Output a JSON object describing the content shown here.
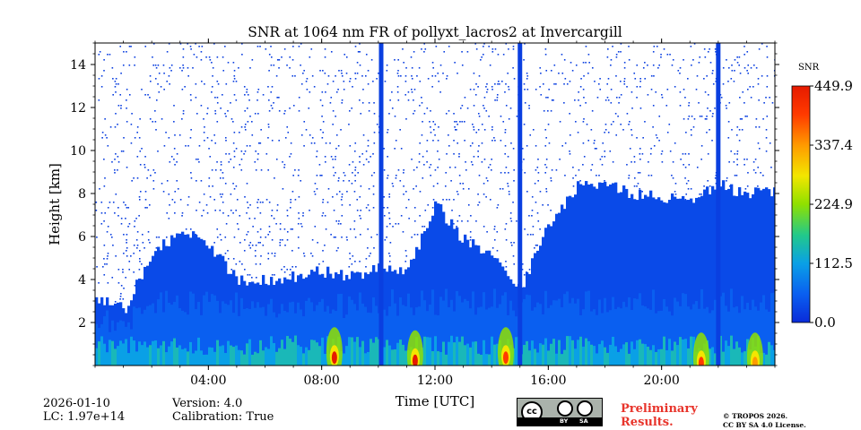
{
  "chart_data": {
    "type": "heatmap",
    "title": "SNR at 1064 nm FR of pollyxt_lacros2 at Invercargill",
    "xlabel": "Time [UTC]",
    "ylabel": "Height [km]",
    "x_range_hours": [
      0,
      24
    ],
    "ylim": [
      0,
      15
    ],
    "xticks": [
      {
        "value": 4,
        "label": "04:00"
      },
      {
        "value": 8,
        "label": "08:00"
      },
      {
        "value": 12,
        "label": "12:00"
      },
      {
        "value": 16,
        "label": "16:00"
      },
      {
        "value": 20,
        "label": "20:00"
      }
    ],
    "yticks": [
      {
        "value": 2,
        "label": "2"
      },
      {
        "value": 4,
        "label": "4"
      },
      {
        "value": 6,
        "label": "6"
      },
      {
        "value": 8,
        "label": "8"
      },
      {
        "value": 10,
        "label": "10"
      },
      {
        "value": 12,
        "label": "12"
      },
      {
        "value": 14,
        "label": "14"
      }
    ],
    "colorbar": {
      "label": "SNR",
      "range": [
        0,
        449.9
      ],
      "ticks": [
        {
          "value": 0,
          "label": "0.0"
        },
        {
          "value": 112.5,
          "label": "112.5"
        },
        {
          "value": 224.9,
          "label": "224.9"
        },
        {
          "value": 337.4,
          "label": "337.4"
        },
        {
          "value": 449.9,
          "label": "449.9"
        }
      ],
      "colormap": [
        "#0a2bd9",
        "#0a5ff0",
        "#0aa0e6",
        "#22c98a",
        "#8fe000",
        "#f3e600",
        "#ff9a00",
        "#ff3a00",
        "#e61a00"
      ]
    },
    "cloud_top_km_hourly": [
      3.1,
      2.6,
      5.2,
      6.2,
      5.6,
      4.0,
      4.0,
      4.1,
      4.4,
      4.2,
      4.5,
      4.3,
      7.5,
      5.8,
      5.3,
      3.5,
      6.6,
      8.3,
      8.4,
      8.0,
      7.9,
      7.6,
      8.4,
      8.0
    ],
    "surface_hotspots": [
      {
        "time_h": 8.45,
        "height_km": 0.45,
        "snr": 440
      },
      {
        "time_h": 11.3,
        "height_km": 0.3,
        "snr": 430
      },
      {
        "time_h": 14.5,
        "height_km": 0.45,
        "snr": 410
      },
      {
        "time_h": 21.4,
        "height_km": 0.2,
        "snr": 380
      },
      {
        "time_h": 23.3,
        "height_km": 0.2,
        "snr": 360
      }
    ],
    "vertical_stripes_h": [
      10.1,
      15.0,
      22.0
    ]
  },
  "footer": {
    "date": "2026-01-10",
    "lc": "LC: 1.97e+14",
    "version": "Version: 4.0",
    "calibration": "Calibration: True",
    "preliminary_1": "Preliminary",
    "preliminary_2": "Results.",
    "copyright_1": "© TROPOS 2026.",
    "copyright_2": "CC BY SA 4.0 License.",
    "cc_by": "BY",
    "cc_sa": "SA",
    "cc_mark": "cc"
  }
}
